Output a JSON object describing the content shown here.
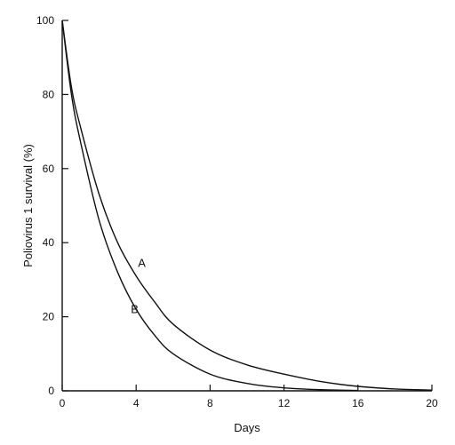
{
  "chart_data": {
    "type": "line",
    "title": "",
    "xlabel": "Days",
    "ylabel": "Poliovirus 1 survival (%)",
    "xlim": [
      0,
      20
    ],
    "ylim": [
      0,
      100
    ],
    "x_ticks": [
      0,
      4,
      8,
      12,
      16,
      20
    ],
    "y_ticks": [
      0,
      20,
      40,
      60,
      80,
      100
    ],
    "grid": false,
    "legend": "none",
    "series": [
      {
        "name": "A",
        "x": [
          0,
          0.5,
          1,
          2,
          3,
          4,
          5,
          6,
          8,
          10,
          12,
          14,
          16,
          18,
          20
        ],
        "y": [
          100,
          82,
          71,
          53,
          40,
          31,
          24,
          18,
          11,
          7,
          4.5,
          2.5,
          1.2,
          0.5,
          0.2
        ]
      },
      {
        "name": "B",
        "x": [
          0,
          0.5,
          1,
          2,
          3,
          4,
          5,
          6,
          8,
          10,
          12,
          14,
          16
        ],
        "y": [
          100,
          80,
          67,
          46,
          32,
          22,
          15,
          10,
          4.5,
          2,
          0.8,
          0.3,
          0.1
        ]
      }
    ]
  }
}
